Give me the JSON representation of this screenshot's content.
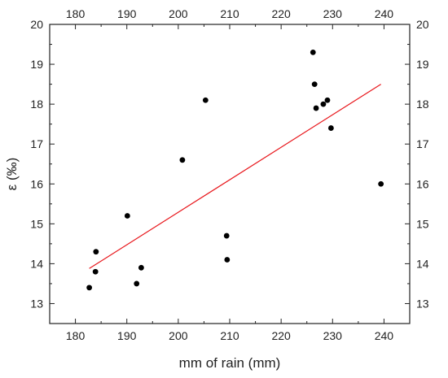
{
  "chart_data": {
    "type": "scatter",
    "title": "",
    "xlabel": "mm of rain (mm)",
    "ylabel": "ε (‰)",
    "xlim": [
      175,
      245
    ],
    "ylim": [
      12.5,
      20
    ],
    "xticks": [
      180,
      190,
      200,
      210,
      220,
      230,
      240
    ],
    "yticks": [
      13,
      14,
      15,
      16,
      17,
      18,
      19,
      20
    ],
    "grid": false,
    "point_color": "#000000",
    "fit_line_color": "#e8161b",
    "points": [
      {
        "x": 182.7,
        "y": 13.4
      },
      {
        "x": 183.9,
        "y": 13.8
      },
      {
        "x": 184.0,
        "y": 14.3
      },
      {
        "x": 190.1,
        "y": 15.2
      },
      {
        "x": 191.9,
        "y": 13.5
      },
      {
        "x": 192.8,
        "y": 13.9
      },
      {
        "x": 200.8,
        "y": 16.6
      },
      {
        "x": 205.3,
        "y": 18.1
      },
      {
        "x": 209.4,
        "y": 14.7
      },
      {
        "x": 209.5,
        "y": 14.1
      },
      {
        "x": 226.2,
        "y": 19.3
      },
      {
        "x": 226.5,
        "y": 18.5
      },
      {
        "x": 226.8,
        "y": 17.9
      },
      {
        "x": 228.2,
        "y": 18.0
      },
      {
        "x": 229.0,
        "y": 18.1
      },
      {
        "x": 229.7,
        "y": 17.4
      },
      {
        "x": 239.4,
        "y": 16.0
      }
    ],
    "fit_line": {
      "x": [
        182.7,
        239.4
      ],
      "y": [
        13.88,
        18.5
      ]
    }
  }
}
